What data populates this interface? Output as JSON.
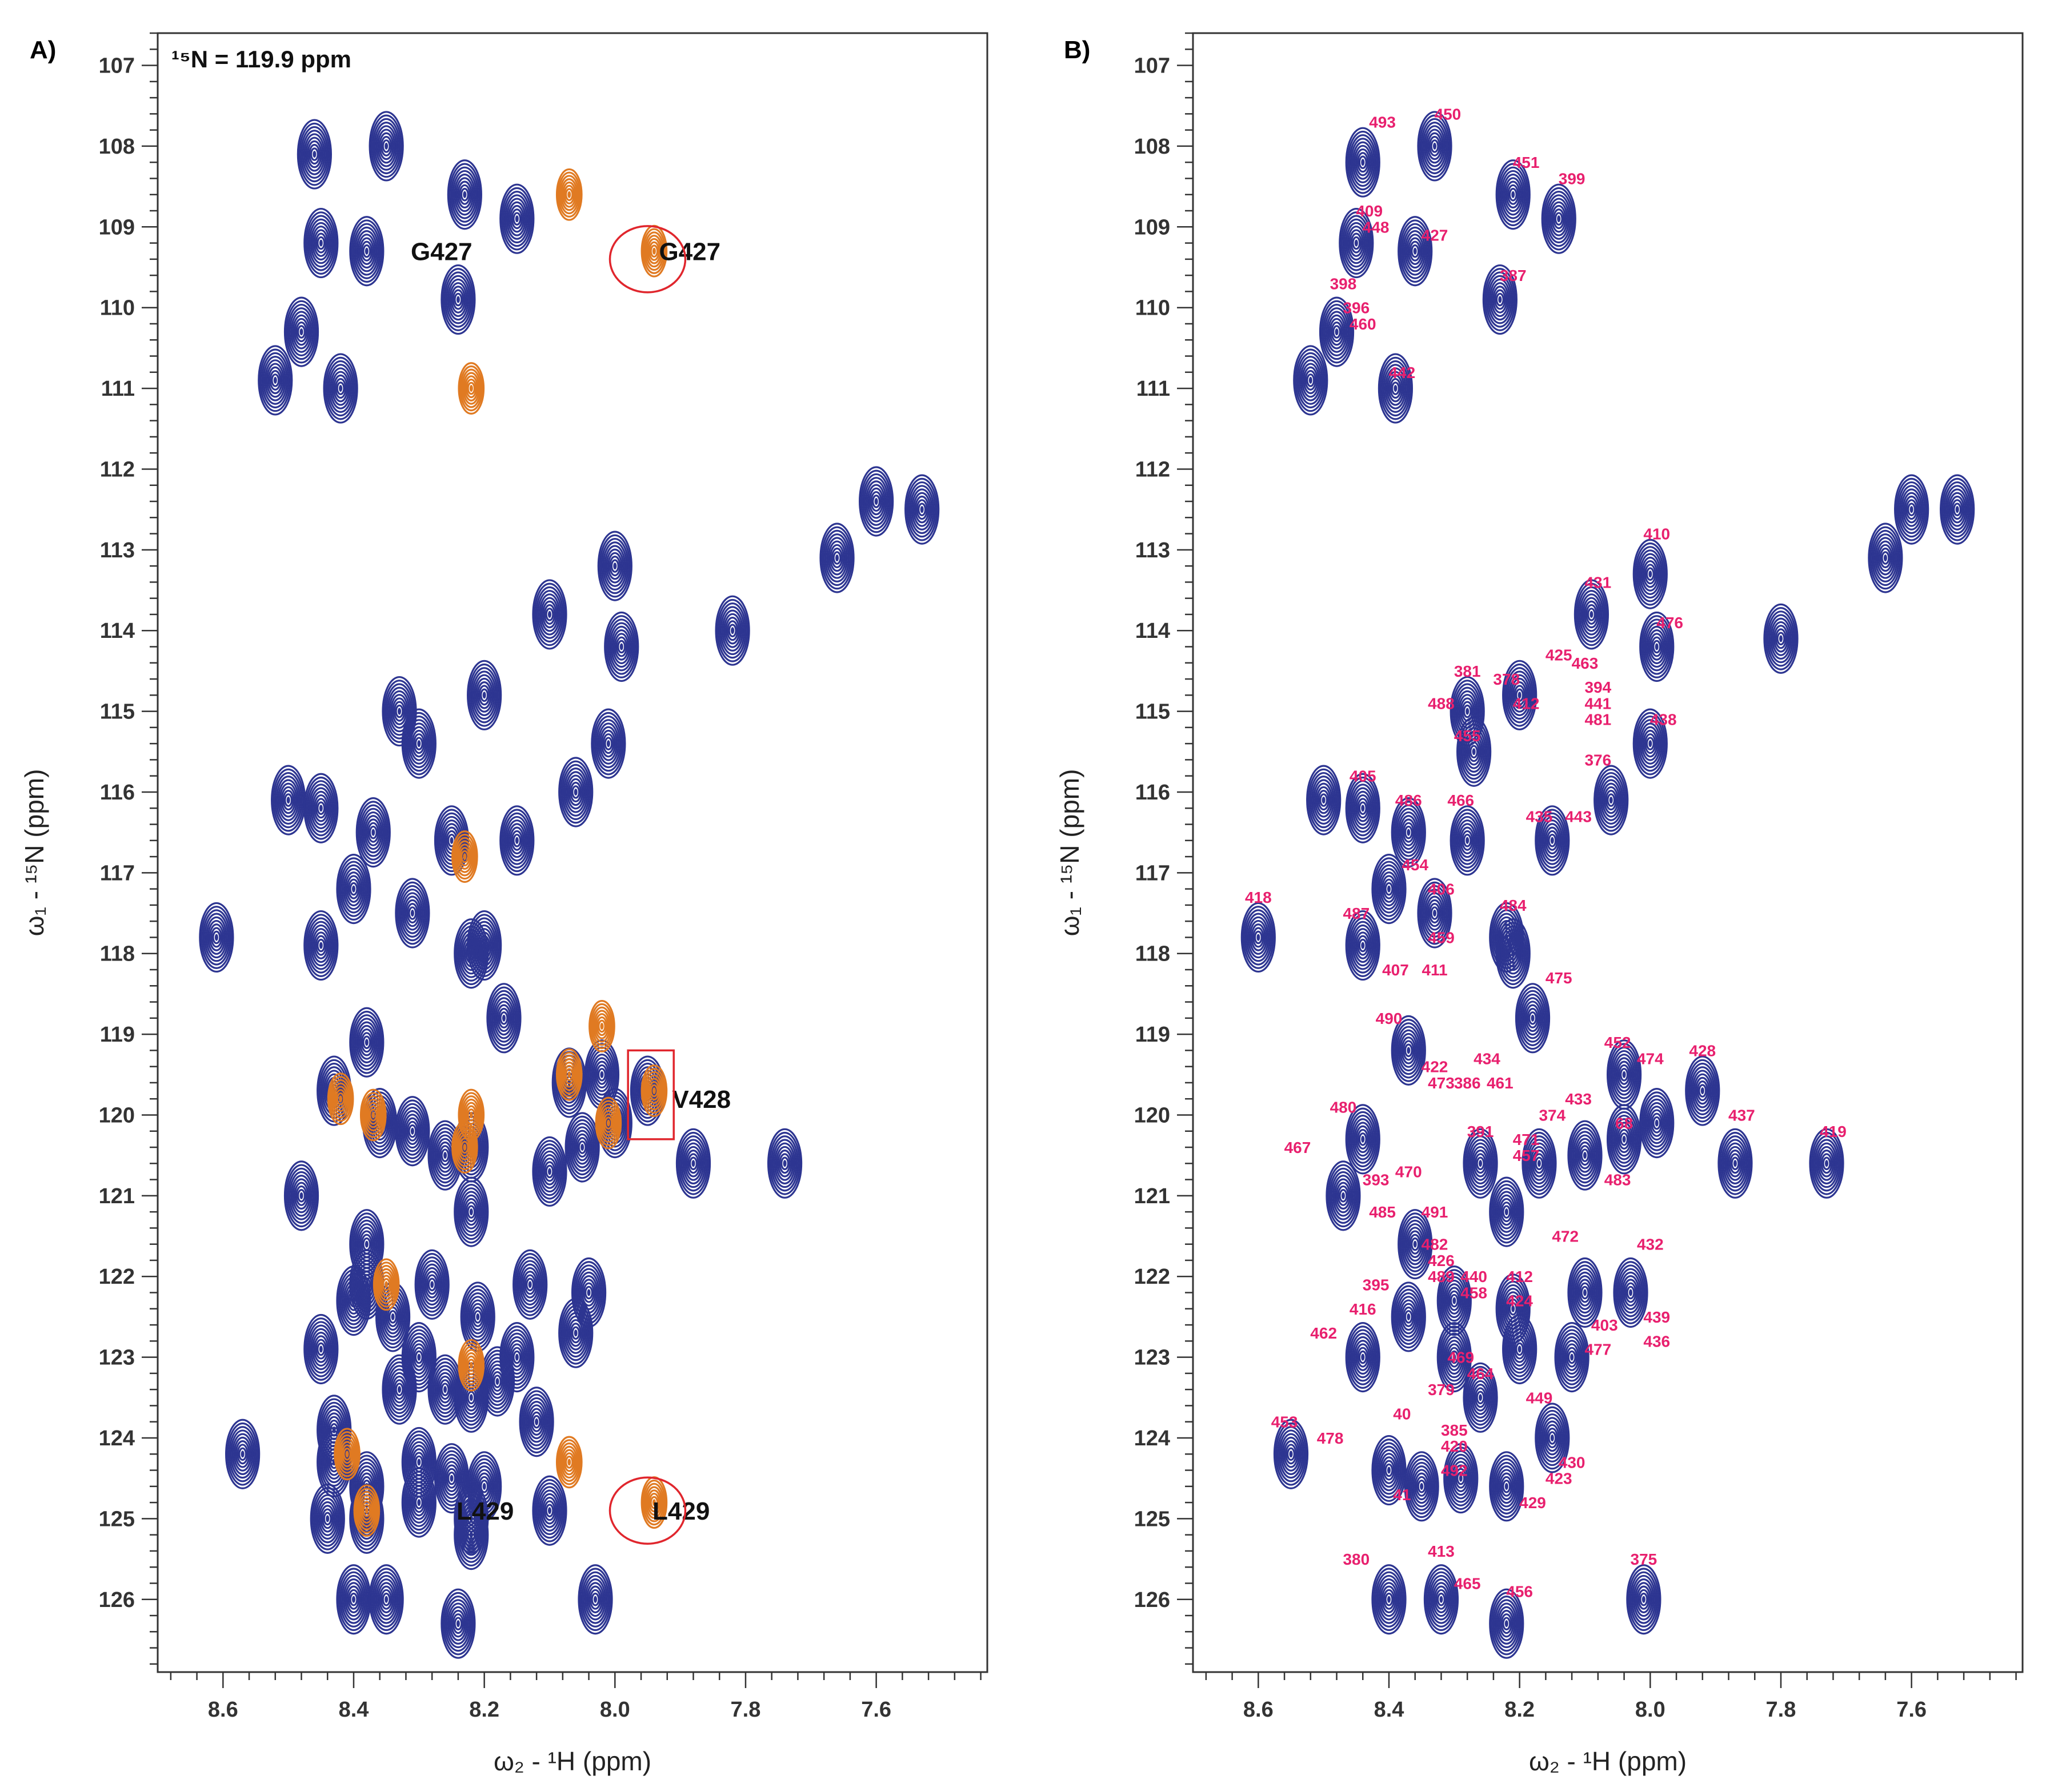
{
  "colors": {
    "blue": "#2d3591",
    "orange": "#e07a22",
    "pink": "#e8206e",
    "red": "#e0262d"
  },
  "chart_data": [
    {
      "type": "scatter",
      "panel": "A)",
      "title": "",
      "note": "¹⁵N = 119.9 ppm",
      "xlabel": "ω₂ - ¹H  (ppm)",
      "ylabel": "ω₁ - ¹⁵N  (ppm)",
      "xlim": [
        8.7,
        7.43
      ],
      "ylim": [
        106.6,
        126.9
      ],
      "x_ticks": [
        8.6,
        8.4,
        8.2,
        8.0,
        7.8,
        7.6
      ],
      "y_ticks": [
        107,
        108,
        109,
        110,
        111,
        112,
        113,
        114,
        115,
        116,
        117,
        118,
        119,
        120,
        121,
        122,
        123,
        124,
        125,
        126
      ],
      "series": [
        {
          "x": [
            8.46,
            8.35,
            8.23,
            8.15,
            8.45,
            8.38,
            8.24,
            8.48,
            8.42,
            8.52,
            8.33,
            8.1,
            8.0,
            7.82,
            7.66,
            7.6,
            7.53,
            7.99,
            8.3,
            8.2,
            8.01,
            8.06,
            8.25,
            8.15,
            8.5,
            8.45,
            8.37,
            8.4,
            8.31,
            8.2,
            8.61,
            8.45,
            8.22,
            8.17,
            8.02,
            8.07,
            7.95,
            7.88,
            7.74,
            8.43,
            8.38,
            8.36,
            8.31,
            8.26,
            8.22,
            8.1,
            8.05,
            8.0,
            8.48,
            8.38,
            8.22,
            8.34,
            8.28,
            8.13,
            8.04,
            8.45,
            8.4,
            8.38,
            8.3,
            8.21,
            8.15,
            8.06,
            8.43,
            8.33,
            8.26,
            8.22,
            8.18,
            8.57,
            8.43,
            8.38,
            8.3,
            8.25,
            8.2,
            8.12,
            8.44,
            8.38,
            8.3,
            8.22,
            8.22,
            8.1,
            8.4,
            8.35,
            8.24,
            8.03
          ],
          "y": [
            108.1,
            108.0,
            108.6,
            108.9,
            109.2,
            109.3,
            109.9,
            110.3,
            111.0,
            110.9,
            115.0,
            113.8,
            113.2,
            114.0,
            113.1,
            112.4,
            112.5,
            114.2,
            115.4,
            114.8,
            115.4,
            116.0,
            116.6,
            116.6,
            116.1,
            116.2,
            116.5,
            117.2,
            117.5,
            117.9,
            117.8,
            117.9,
            118.0,
            118.8,
            119.5,
            119.6,
            119.7,
            120.6,
            120.6,
            119.7,
            119.1,
            120.1,
            120.2,
            120.5,
            120.4,
            120.7,
            120.4,
            120.1,
            121.0,
            121.6,
            121.2,
            122.5,
            122.1,
            122.1,
            122.2,
            122.9,
            122.3,
            122.1,
            123.0,
            122.5,
            123.0,
            122.7,
            123.9,
            123.4,
            123.4,
            123.5,
            123.3,
            124.2,
            124.3,
            124.6,
            124.3,
            124.5,
            124.6,
            123.8,
            125.0,
            125.0,
            124.8,
            125.0,
            125.2,
            124.9,
            126.0,
            126.0,
            126.3,
            126.0
          ],
          "name": ""
        },
        {
          "x": [
            8.07,
            7.94,
            8.22,
            8.23,
            8.02,
            8.07,
            8.42,
            8.37,
            8.22,
            7.94,
            8.01,
            8.23,
            8.35,
            8.22,
            8.41,
            8.07,
            8.38,
            7.94
          ],
          "y": [
            108.6,
            109.3,
            111.0,
            116.8,
            118.9,
            119.5,
            119.8,
            120.0,
            120.0,
            119.7,
            120.1,
            120.4,
            122.1,
            123.1,
            124.2,
            124.3,
            124.9,
            124.8
          ],
          "name": ""
        }
      ],
      "callouts": [
        {
          "label": "G427",
          "x": 8.33,
          "y": 109.3
        },
        {
          "label": "G427",
          "x": 7.95,
          "y": 109.3
        },
        {
          "label": "V428",
          "x": 7.93,
          "y": 119.8
        },
        {
          "label": "L429",
          "x": 8.26,
          "y": 124.9
        },
        {
          "label": "L429",
          "x": 7.96,
          "y": 124.9
        }
      ],
      "circles": [
        {
          "x": 7.95,
          "y": 109.4
        },
        {
          "x": 7.95,
          "y": 124.9
        }
      ],
      "box": {
        "x1": 7.98,
        "x2": 7.91,
        "y1": 119.2,
        "y2": 120.3
      }
    },
    {
      "type": "scatter",
      "panel": "B)",
      "title": "",
      "xlabel": "ω₂ - ¹H  (ppm)",
      "ylabel": "ω₁ - ¹⁵N  (ppm)",
      "xlim": [
        8.7,
        7.43
      ],
      "ylim": [
        106.6,
        126.9
      ],
      "x_ticks": [
        8.6,
        8.4,
        8.2,
        8.0,
        7.8,
        7.6
      ],
      "y_ticks": [
        107,
        108,
        109,
        110,
        111,
        112,
        113,
        114,
        115,
        116,
        117,
        118,
        119,
        120,
        121,
        122,
        123,
        124,
        125,
        126
      ],
      "series": [
        {
          "x": [
            8.44,
            8.33,
            8.21,
            8.14,
            8.45,
            8.36,
            8.23,
            8.48,
            8.39,
            8.52,
            8.28,
            8.09,
            8.0,
            7.8,
            7.64,
            7.6,
            7.53,
            7.99,
            8.27,
            8.2,
            8.0,
            8.06,
            8.28,
            8.15,
            8.5,
            8.44,
            8.37,
            8.4,
            8.33,
            8.22,
            8.6,
            8.44,
            8.21,
            8.18,
            8.04,
            7.99,
            7.92,
            7.87,
            7.73,
            8.44,
            8.37,
            8.26,
            8.17,
            8.1,
            8.04,
            8.47,
            8.36,
            8.22,
            8.3,
            8.21,
            8.1,
            8.03,
            8.44,
            8.37,
            8.3,
            8.26,
            8.2,
            8.12,
            8.55,
            8.4,
            8.35,
            8.29,
            8.22,
            8.15,
            8.4,
            8.32,
            8.22,
            8.01
          ],
          "y": [
            108.2,
            108.0,
            108.6,
            108.9,
            109.2,
            109.3,
            109.9,
            110.3,
            111.0,
            110.9,
            115.0,
            113.8,
            113.3,
            114.1,
            113.1,
            112.5,
            112.5,
            114.2,
            115.5,
            114.8,
            115.4,
            116.1,
            116.6,
            116.6,
            116.1,
            116.2,
            116.5,
            117.2,
            117.5,
            117.8,
            117.8,
            117.9,
            118.0,
            118.8,
            119.5,
            120.1,
            119.7,
            120.6,
            120.6,
            120.3,
            119.2,
            120.6,
            120.6,
            120.5,
            120.3,
            121.0,
            121.6,
            121.2,
            122.3,
            122.4,
            122.2,
            122.2,
            123.0,
            122.5,
            123.0,
            123.5,
            122.9,
            123.0,
            124.2,
            124.4,
            124.6,
            124.5,
            124.6,
            124.0,
            126.0,
            126.0,
            126.3,
            126.0
          ],
          "name": ""
        }
      ],
      "peak_labels": [
        {
          "label": "493",
          "x": 8.41,
          "y": 107.7
        },
        {
          "label": "450",
          "x": 8.31,
          "y": 107.6
        },
        {
          "label": "451",
          "x": 8.19,
          "y": 108.2
        },
        {
          "label": "399",
          "x": 8.12,
          "y": 108.4
        },
        {
          "label": "409",
          "x": 8.43,
          "y": 108.8
        },
        {
          "label": "448",
          "x": 8.42,
          "y": 109.0
        },
        {
          "label": "427",
          "x": 8.33,
          "y": 109.1
        },
        {
          "label": "387",
          "x": 8.21,
          "y": 109.6
        },
        {
          "label": "398",
          "x": 8.47,
          "y": 109.7
        },
        {
          "label": "396",
          "x": 8.45,
          "y": 110.0
        },
        {
          "label": "460",
          "x": 8.44,
          "y": 110.2
        },
        {
          "label": "442",
          "x": 8.38,
          "y": 110.8
        },
        {
          "label": "410",
          "x": 7.99,
          "y": 112.8
        },
        {
          "label": "431",
          "x": 8.08,
          "y": 113.4
        },
        {
          "label": "476",
          "x": 7.97,
          "y": 113.9
        },
        {
          "label": "425",
          "x": 8.14,
          "y": 114.3
        },
        {
          "label": "463",
          "x": 8.1,
          "y": 114.4
        },
        {
          "label": "381",
          "x": 8.28,
          "y": 114.5
        },
        {
          "label": "378",
          "x": 8.22,
          "y": 114.6
        },
        {
          "label": "394",
          "x": 8.08,
          "y": 114.7
        },
        {
          "label": "412",
          "x": 8.19,
          "y": 114.9
        },
        {
          "label": "441",
          "x": 8.08,
          "y": 114.9
        },
        {
          "label": "488",
          "x": 8.32,
          "y": 114.9
        },
        {
          "label": "481",
          "x": 8.08,
          "y": 115.1
        },
        {
          "label": "438",
          "x": 7.98,
          "y": 115.1
        },
        {
          "label": "455",
          "x": 8.28,
          "y": 115.3
        },
        {
          "label": "376",
          "x": 8.08,
          "y": 115.6
        },
        {
          "label": "405",
          "x": 8.44,
          "y": 115.8
        },
        {
          "label": "486",
          "x": 8.37,
          "y": 116.1
        },
        {
          "label": "466",
          "x": 8.29,
          "y": 116.1
        },
        {
          "label": "435",
          "x": 8.17,
          "y": 116.3
        },
        {
          "label": "443",
          "x": 8.11,
          "y": 116.3
        },
        {
          "label": "454",
          "x": 8.36,
          "y": 116.9
        },
        {
          "label": "418",
          "x": 8.6,
          "y": 117.3
        },
        {
          "label": "406",
          "x": 8.32,
          "y": 117.2
        },
        {
          "label": "484",
          "x": 8.21,
          "y": 117.4
        },
        {
          "label": "487",
          "x": 8.45,
          "y": 117.5
        },
        {
          "label": "459",
          "x": 8.32,
          "y": 117.8
        },
        {
          "label": "407",
          "x": 8.39,
          "y": 118.2
        },
        {
          "label": "411",
          "x": 8.33,
          "y": 118.2
        },
        {
          "label": "475",
          "x": 8.14,
          "y": 118.3
        },
        {
          "label": "490",
          "x": 8.4,
          "y": 118.8
        },
        {
          "label": "452",
          "x": 8.05,
          "y": 119.1
        },
        {
          "label": "428",
          "x": 7.92,
          "y": 119.2
        },
        {
          "label": "422",
          "x": 8.33,
          "y": 119.4
        },
        {
          "label": "434",
          "x": 8.25,
          "y": 119.3
        },
        {
          "label": "474",
          "x": 8.0,
          "y": 119.3
        },
        {
          "label": "461",
          "x": 8.23,
          "y": 119.6
        },
        {
          "label": "473",
          "x": 8.32,
          "y": 119.6
        },
        {
          "label": "386",
          "x": 8.28,
          "y": 119.6
        },
        {
          "label": "433",
          "x": 8.11,
          "y": 119.8
        },
        {
          "label": "480",
          "x": 8.47,
          "y": 119.9
        },
        {
          "label": "374",
          "x": 8.15,
          "y": 120.0
        },
        {
          "label": "437",
          "x": 7.86,
          "y": 120.0
        },
        {
          "label": "68",
          "x": 8.04,
          "y": 120.1
        },
        {
          "label": "419",
          "x": 7.72,
          "y": 120.2
        },
        {
          "label": "391",
          "x": 8.26,
          "y": 120.2
        },
        {
          "label": "471",
          "x": 8.19,
          "y": 120.3
        },
        {
          "label": "467",
          "x": 8.54,
          "y": 120.4
        },
        {
          "label": "457",
          "x": 8.19,
          "y": 120.5
        },
        {
          "label": "470",
          "x": 8.37,
          "y": 120.7
        },
        {
          "label": "393",
          "x": 8.42,
          "y": 120.8
        },
        {
          "label": "483",
          "x": 8.05,
          "y": 120.8
        },
        {
          "label": "491",
          "x": 8.33,
          "y": 121.2
        },
        {
          "label": "485",
          "x": 8.41,
          "y": 121.2
        },
        {
          "label": "472",
          "x": 8.13,
          "y": 121.5
        },
        {
          "label": "432",
          "x": 8.0,
          "y": 121.6
        },
        {
          "label": "482",
          "x": 8.33,
          "y": 121.6
        },
        {
          "label": "426",
          "x": 8.32,
          "y": 121.8
        },
        {
          "label": "440",
          "x": 8.27,
          "y": 122.0
        },
        {
          "label": "412",
          "x": 8.2,
          "y": 122.0
        },
        {
          "label": "489",
          "x": 8.32,
          "y": 122.0
        },
        {
          "label": "395",
          "x": 8.42,
          "y": 122.1
        },
        {
          "label": "458",
          "x": 8.27,
          "y": 122.2
        },
        {
          "label": "424",
          "x": 8.2,
          "y": 122.3
        },
        {
          "label": "416",
          "x": 8.44,
          "y": 122.4
        },
        {
          "label": "439",
          "x": 7.99,
          "y": 122.5
        },
        {
          "label": "403",
          "x": 8.07,
          "y": 122.6
        },
        {
          "label": "462",
          "x": 8.5,
          "y": 122.7
        },
        {
          "label": "436",
          "x": 7.99,
          "y": 122.8
        },
        {
          "label": "477",
          "x": 8.08,
          "y": 122.9
        },
        {
          "label": "469",
          "x": 8.29,
          "y": 123.0
        },
        {
          "label": "464",
          "x": 8.26,
          "y": 123.2
        },
        {
          "label": "379",
          "x": 8.32,
          "y": 123.4
        },
        {
          "label": "449",
          "x": 8.17,
          "y": 123.5
        },
        {
          "label": "40",
          "x": 8.38,
          "y": 123.7
        },
        {
          "label": "453",
          "x": 8.56,
          "y": 123.8
        },
        {
          "label": "385",
          "x": 8.3,
          "y": 123.9
        },
        {
          "label": "478",
          "x": 8.49,
          "y": 124.0
        },
        {
          "label": "420",
          "x": 8.3,
          "y": 124.1
        },
        {
          "label": "430",
          "x": 8.12,
          "y": 124.3
        },
        {
          "label": "492",
          "x": 8.3,
          "y": 124.4
        },
        {
          "label": "423",
          "x": 8.14,
          "y": 124.5
        },
        {
          "label": "41",
          "x": 8.38,
          "y": 124.7
        },
        {
          "label": "429",
          "x": 8.18,
          "y": 124.8
        },
        {
          "label": "413",
          "x": 8.32,
          "y": 125.4
        },
        {
          "label": "380",
          "x": 8.45,
          "y": 125.5
        },
        {
          "label": "375",
          "x": 8.01,
          "y": 125.5
        },
        {
          "label": "465",
          "x": 8.28,
          "y": 125.8
        },
        {
          "label": "456",
          "x": 8.2,
          "y": 125.9
        }
      ]
    }
  ]
}
